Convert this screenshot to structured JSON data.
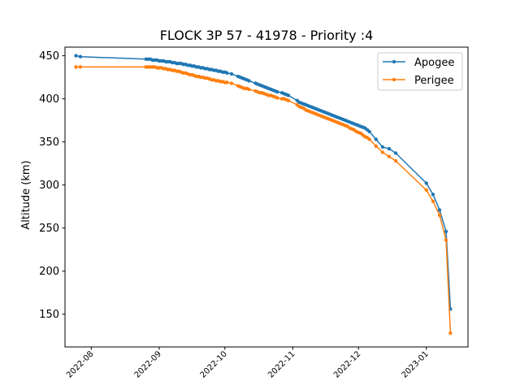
{
  "chart_data": {
    "type": "line",
    "title": "FLOCK 3P 57 - 41978 - Priority :4",
    "xlabel": "",
    "ylabel": "Altitude (km)",
    "x_type": "date",
    "xlim": [
      "2022-07-20",
      "2023-01-20"
    ],
    "ylim": [
      112,
      460
    ],
    "x_ticks": [
      "2022-08-01",
      "2022-09-01",
      "2022-10-01",
      "2022-11-01",
      "2022-12-01",
      "2023-01-01"
    ],
    "x_tick_labels": [
      "2022-08",
      "2022-09",
      "2022-10",
      "2022-11",
      "2022-12",
      "2023-01"
    ],
    "y_ticks": [
      150,
      200,
      250,
      300,
      350,
      400,
      450
    ],
    "y_tick_labels": [
      "150",
      "200",
      "250",
      "300",
      "350",
      "400",
      "450"
    ],
    "grid": false,
    "legend_position": "top-right",
    "series": [
      {
        "name": "Apogee",
        "color": "#1f77b4",
        "x": [
          "2022-07-25",
          "2022-07-27",
          "2022-08-26",
          "2022-08-27",
          "2022-08-28",
          "2022-08-29",
          "2022-08-30",
          "2022-08-31",
          "2022-09-01",
          "2022-09-02",
          "2022-09-03",
          "2022-09-04",
          "2022-09-05",
          "2022-09-06",
          "2022-09-07",
          "2022-09-08",
          "2022-09-09",
          "2022-09-10",
          "2022-09-11",
          "2022-09-12",
          "2022-09-13",
          "2022-09-14",
          "2022-09-15",
          "2022-09-16",
          "2022-09-17",
          "2022-09-18",
          "2022-09-19",
          "2022-09-20",
          "2022-09-21",
          "2022-09-22",
          "2022-09-23",
          "2022-09-24",
          "2022-09-25",
          "2022-09-26",
          "2022-09-27",
          "2022-09-28",
          "2022-09-29",
          "2022-09-30",
          "2022-10-01",
          "2022-10-02",
          "2022-10-04",
          "2022-10-07",
          "2022-10-08",
          "2022-10-09",
          "2022-10-10",
          "2022-10-11",
          "2022-10-12",
          "2022-10-15",
          "2022-10-16",
          "2022-10-17",
          "2022-10-18",
          "2022-10-19",
          "2022-10-20",
          "2022-10-21",
          "2022-10-22",
          "2022-10-23",
          "2022-10-24",
          "2022-10-25",
          "2022-10-27",
          "2022-10-28",
          "2022-10-29",
          "2022-10-30",
          "2022-11-03",
          "2022-11-04",
          "2022-11-05",
          "2022-11-06",
          "2022-11-07",
          "2022-11-08",
          "2022-11-09",
          "2022-11-10",
          "2022-11-11",
          "2022-11-12",
          "2022-11-13",
          "2022-11-14",
          "2022-11-15",
          "2022-11-16",
          "2022-11-17",
          "2022-11-18",
          "2022-11-19",
          "2022-11-20",
          "2022-11-21",
          "2022-11-22",
          "2022-11-23",
          "2022-11-24",
          "2022-11-25",
          "2022-11-26",
          "2022-11-27",
          "2022-11-28",
          "2022-11-29",
          "2022-11-30",
          "2022-12-01",
          "2022-12-02",
          "2022-12-03",
          "2022-12-04",
          "2022-12-05",
          "2022-12-06",
          "2022-12-09",
          "2022-12-12",
          "2022-12-15",
          "2022-12-18",
          "2023-01-01",
          "2023-01-04",
          "2023-01-07",
          "2023-01-10",
          "2023-01-12"
        ],
        "y": [
          450,
          449,
          446,
          446,
          446,
          445,
          445,
          445,
          444,
          444,
          444,
          443,
          443,
          443,
          442,
          442,
          441,
          441,
          441,
          440,
          440,
          439,
          439,
          438,
          438,
          437,
          437,
          436,
          436,
          435,
          435,
          434,
          434,
          433,
          433,
          432,
          432,
          431,
          431,
          430,
          429,
          426,
          425,
          424,
          423,
          422,
          421,
          418,
          417,
          416,
          415,
          414,
          413,
          412,
          411,
          410,
          409,
          408,
          407,
          406,
          405,
          404,
          398,
          396,
          395,
          394,
          393,
          392,
          391,
          390,
          389,
          388,
          387,
          386,
          385,
          384,
          383,
          382,
          381,
          380,
          379,
          378,
          377,
          376,
          375,
          374,
          373,
          372,
          371,
          370,
          369,
          368,
          367,
          366,
          364,
          362,
          353,
          344,
          342,
          337,
          302,
          289,
          271,
          246,
          156
        ]
      },
      {
        "name": "Perigee",
        "color": "#ff7f0e",
        "x": [
          "2022-07-25",
          "2022-07-27",
          "2022-08-26",
          "2022-08-27",
          "2022-08-28",
          "2022-08-29",
          "2022-08-30",
          "2022-08-31",
          "2022-09-01",
          "2022-09-02",
          "2022-09-03",
          "2022-09-04",
          "2022-09-05",
          "2022-09-06",
          "2022-09-07",
          "2022-09-08",
          "2022-09-09",
          "2022-09-10",
          "2022-09-11",
          "2022-09-12",
          "2022-09-13",
          "2022-09-14",
          "2022-09-15",
          "2022-09-16",
          "2022-09-17",
          "2022-09-18",
          "2022-09-19",
          "2022-09-20",
          "2022-09-21",
          "2022-09-22",
          "2022-09-23",
          "2022-09-24",
          "2022-09-25",
          "2022-09-26",
          "2022-09-27",
          "2022-09-28",
          "2022-09-29",
          "2022-09-30",
          "2022-10-01",
          "2022-10-02",
          "2022-10-04",
          "2022-10-07",
          "2022-10-08",
          "2022-10-09",
          "2022-10-10",
          "2022-10-11",
          "2022-10-12",
          "2022-10-15",
          "2022-10-16",
          "2022-10-17",
          "2022-10-18",
          "2022-10-19",
          "2022-10-20",
          "2022-10-21",
          "2022-10-22",
          "2022-10-23",
          "2022-10-24",
          "2022-10-25",
          "2022-10-27",
          "2022-10-28",
          "2022-10-29",
          "2022-10-30",
          "2022-11-03",
          "2022-11-04",
          "2022-11-05",
          "2022-11-06",
          "2022-11-07",
          "2022-11-08",
          "2022-11-09",
          "2022-11-10",
          "2022-11-11",
          "2022-11-12",
          "2022-11-13",
          "2022-11-14",
          "2022-11-15",
          "2022-11-16",
          "2022-11-17",
          "2022-11-18",
          "2022-11-19",
          "2022-11-20",
          "2022-11-21",
          "2022-11-22",
          "2022-11-23",
          "2022-11-24",
          "2022-11-25",
          "2022-11-26",
          "2022-11-27",
          "2022-11-28",
          "2022-11-29",
          "2022-11-30",
          "2022-12-01",
          "2022-12-02",
          "2022-12-03",
          "2022-12-04",
          "2022-12-05",
          "2022-12-06",
          "2022-12-09",
          "2022-12-12",
          "2022-12-15",
          "2022-12-18",
          "2023-01-01",
          "2023-01-04",
          "2023-01-07",
          "2023-01-10",
          "2023-01-12"
        ],
        "y": [
          437,
          437,
          437,
          437,
          437,
          437,
          437,
          436,
          436,
          436,
          435,
          435,
          434,
          434,
          433,
          433,
          432,
          432,
          431,
          430,
          430,
          429,
          428,
          428,
          427,
          426,
          426,
          425,
          425,
          424,
          424,
          423,
          422,
          422,
          421,
          421,
          420,
          420,
          419,
          419,
          418,
          415,
          414,
          413,
          412,
          412,
          411,
          409,
          408,
          407,
          407,
          406,
          405,
          404,
          404,
          403,
          402,
          401,
          400,
          400,
          399,
          398,
          393,
          391,
          390,
          389,
          387,
          386,
          385,
          384,
          383,
          382,
          381,
          380,
          379,
          378,
          377,
          376,
          375,
          374,
          373,
          372,
          371,
          370,
          369,
          368,
          366,
          365,
          364,
          362,
          361,
          360,
          358,
          356,
          355,
          353,
          345,
          338,
          333,
          328,
          294,
          281,
          265,
          236,
          128
        ]
      }
    ]
  }
}
